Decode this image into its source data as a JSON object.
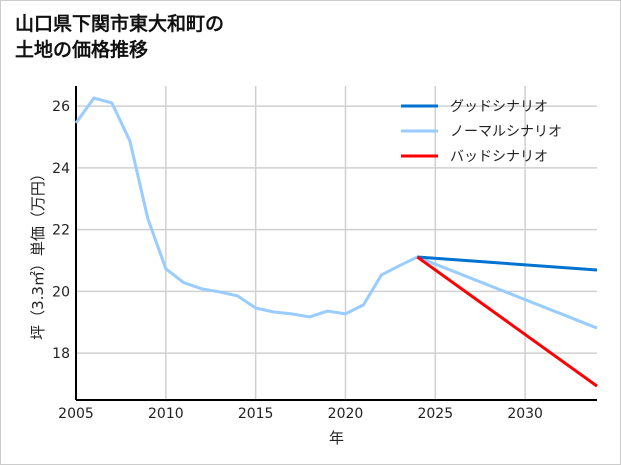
{
  "chart_data": {
    "type": "line",
    "title": "山口県下関市東大和町の\n土地の価格推移",
    "xlabel": "年",
    "ylabel": "坪（3.3㎡）単価（万円）",
    "xlim": [
      2005,
      2034
    ],
    "ylim": [
      16.48,
      26.65
    ],
    "xticks": [
      2005,
      2010,
      2015,
      2020,
      2025,
      2030
    ],
    "yticks": [
      18,
      20,
      22,
      24,
      26
    ],
    "grid": true,
    "legend_position": "top-right",
    "series": [
      {
        "name": "グッドシナリオ",
        "color": "#0072cf",
        "x": [
          2024,
          2034
        ],
        "y": [
          21.11,
          20.69
        ]
      },
      {
        "name": "ノーマルシナリオ",
        "color": "#99ccff",
        "x": [
          2005,
          2006,
          2007,
          2008,
          2009,
          2010,
          2011,
          2012,
          2013,
          2014,
          2015,
          2016,
          2017,
          2018,
          2019,
          2020,
          2021,
          2022,
          2023,
          2024,
          2034
        ],
        "y": [
          25.45,
          26.26,
          26.1,
          24.87,
          22.35,
          20.73,
          20.28,
          20.08,
          19.98,
          19.85,
          19.46,
          19.33,
          19.27,
          19.17,
          19.36,
          19.27,
          19.56,
          20.53,
          20.83,
          21.11,
          18.81
        ]
      },
      {
        "name": "バッドシナリオ",
        "color": "#ff0000",
        "x": [
          2024,
          2034
        ],
        "y": [
          21.11,
          16.93
        ]
      }
    ]
  }
}
